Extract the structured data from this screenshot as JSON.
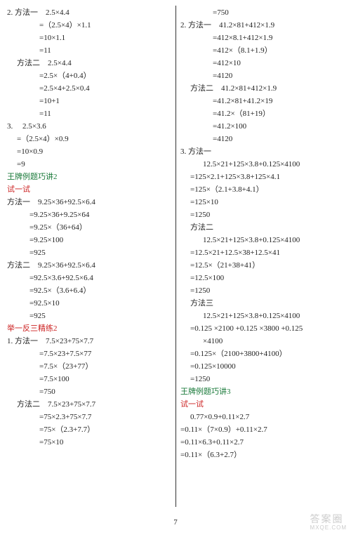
{
  "pageNumber": "7",
  "watermark": {
    "main": "答案圈",
    "sub": "MXQE.COM"
  },
  "left": [
    {
      "cls": "",
      "t": "2. 方法一　2.5×4.4"
    },
    {
      "cls": "ind3",
      "t": "=（2.5×4）×1.1"
    },
    {
      "cls": "ind3",
      "t": "=10×1.1"
    },
    {
      "cls": "ind3",
      "t": "=11"
    },
    {
      "cls": "ind1",
      "t": "方法二　2.5×4.4"
    },
    {
      "cls": "ind3",
      "t": "=2.5×（4+0.4）"
    },
    {
      "cls": "ind3",
      "t": "=2.5×4+2.5×0.4"
    },
    {
      "cls": "ind3",
      "t": "=10+1"
    },
    {
      "cls": "ind3",
      "t": "=11"
    },
    {
      "cls": "",
      "t": "3. 　2.5×3.6"
    },
    {
      "cls": "ind1",
      "t": "=（2.5×4）×0.9"
    },
    {
      "cls": "ind1",
      "t": "=10×0.9"
    },
    {
      "cls": "ind1",
      "t": "=9"
    },
    {
      "cls": "green",
      "t": "王牌例题巧讲2"
    },
    {
      "cls": "red",
      "t": "试一试"
    },
    {
      "cls": "",
      "t": "方法一　9.25×36+92.5×6.4"
    },
    {
      "cls": "ind2",
      "t": "=9.25×36+9.25×64"
    },
    {
      "cls": "ind2",
      "t": "=9.25×（36+64）"
    },
    {
      "cls": "ind2",
      "t": "=9.25×100"
    },
    {
      "cls": "ind2",
      "t": "=925"
    },
    {
      "cls": "",
      "t": "方法二　9.25×36+92.5×6.4"
    },
    {
      "cls": "ind2",
      "t": "=92.5×3.6+92.5×6.4"
    },
    {
      "cls": "ind2",
      "t": "=92.5×（3.6+6.4）"
    },
    {
      "cls": "ind2",
      "t": "=92.5×10"
    },
    {
      "cls": "ind2",
      "t": "=925"
    },
    {
      "cls": "red",
      "t": "举一反三精练2"
    },
    {
      "cls": "",
      "t": "1. 方法一　7.5×23+75×7.7"
    },
    {
      "cls": "ind3",
      "t": "=7.5×23+7.5×77"
    },
    {
      "cls": "ind3",
      "t": "=7.5×（23+77）"
    },
    {
      "cls": "ind3",
      "t": "=7.5×100"
    },
    {
      "cls": "ind3",
      "t": "=750"
    },
    {
      "cls": "ind1",
      "t": "方法二　7.5×23+75×7.7"
    },
    {
      "cls": "ind3",
      "t": "=75×2.3+75×7.7"
    },
    {
      "cls": "ind3",
      "t": "=75×（2.3+7.7）"
    },
    {
      "cls": "ind3",
      "t": "=75×10"
    }
  ],
  "right": [
    {
      "cls": "ind3",
      "t": "=750"
    },
    {
      "cls": "",
      "t": "2. 方法一　41.2×81+412×1.9"
    },
    {
      "cls": "ind3",
      "t": "=412×8.1+412×1.9"
    },
    {
      "cls": "ind3",
      "t": "=412×（8.1+1.9）"
    },
    {
      "cls": "ind3",
      "t": "=412×10"
    },
    {
      "cls": "ind3",
      "t": "=4120"
    },
    {
      "cls": "ind1",
      "t": "方法二　41.2×81+412×1.9"
    },
    {
      "cls": "ind3",
      "t": "=41.2×81+41.2×19"
    },
    {
      "cls": "ind3",
      "t": "=41.2×（81+19）"
    },
    {
      "cls": "ind3",
      "t": "=41.2×100"
    },
    {
      "cls": "ind3",
      "t": "=4120"
    },
    {
      "cls": "",
      "t": "3. 方法一"
    },
    {
      "cls": "ind2",
      "t": "12.5×21+125×3.8+0.125×4100"
    },
    {
      "cls": "ind1",
      "t": "=125×2.1+125×3.8+125×4.1"
    },
    {
      "cls": "ind1",
      "t": "=125×（2.1+3.8+4.1）"
    },
    {
      "cls": "ind1",
      "t": "=125×10"
    },
    {
      "cls": "ind1",
      "t": "=1250"
    },
    {
      "cls": "ind1",
      "t": "方法二"
    },
    {
      "cls": "ind2",
      "t": "12.5×21+125×3.8+0.125×4100"
    },
    {
      "cls": "ind1",
      "t": "=12.5×21+12.5×38+12.5×41"
    },
    {
      "cls": "ind1",
      "t": "=12.5×（21+38+41）"
    },
    {
      "cls": "ind1",
      "t": "=12.5×100"
    },
    {
      "cls": "ind1",
      "t": "=1250"
    },
    {
      "cls": "ind1",
      "t": "方法三"
    },
    {
      "cls": "ind2",
      "t": "12.5×21+125×3.8+0.125×4100"
    },
    {
      "cls": "ind1",
      "t": "=0.125 ×2100 +0.125 ×3800 +0.125"
    },
    {
      "cls": "ind2",
      "t": "×4100"
    },
    {
      "cls": "ind1",
      "t": "=0.125×（2100+3800+4100）"
    },
    {
      "cls": "ind1",
      "t": "=0.125×10000"
    },
    {
      "cls": "ind1",
      "t": "=1250"
    },
    {
      "cls": "green",
      "t": "王牌例题巧讲3"
    },
    {
      "cls": "red",
      "t": "试一试"
    },
    {
      "cls": "ind1",
      "t": "0.77×0.9+0.11×2.7"
    },
    {
      "cls": "",
      "t": "=0.11×（7×0.9）+0.11×2.7"
    },
    {
      "cls": "",
      "t": "=0.11×6.3+0.11×2.7"
    },
    {
      "cls": "",
      "t": "=0.11×（6.3+2.7）"
    }
  ]
}
